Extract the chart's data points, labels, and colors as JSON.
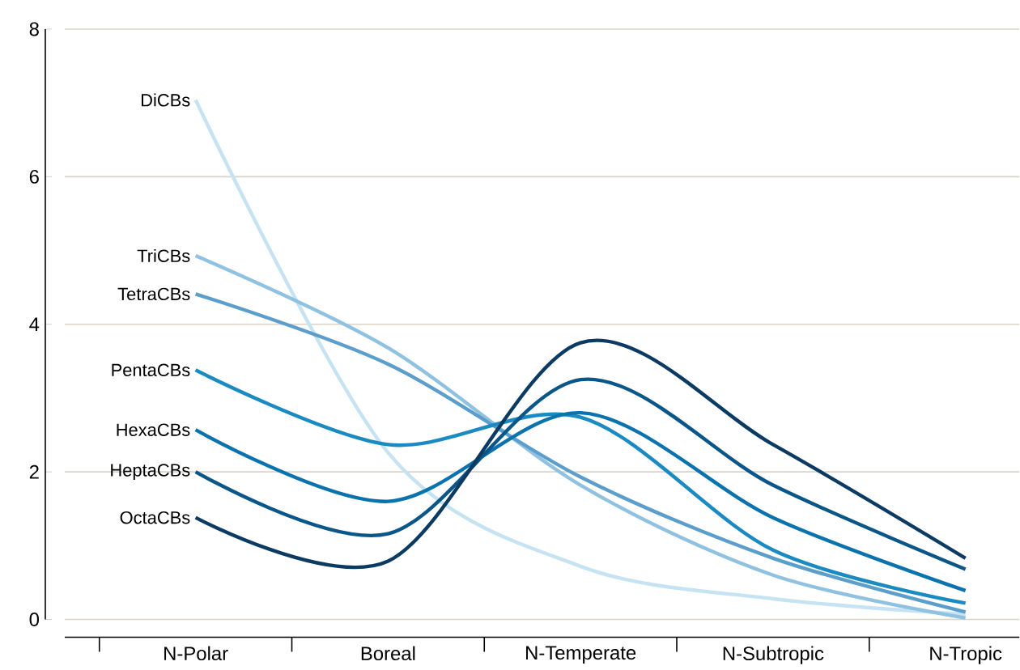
{
  "chart_data": {
    "type": "line",
    "categories": [
      "N-Polar",
      "Boreal",
      "N-Temperate",
      "N-Subtropic",
      "N-Tropic"
    ],
    "series": [
      {
        "name": "DiCBs",
        "color": "#c5e3f2",
        "values": [
          7.04,
          2.26,
          0.72,
          0.28,
          0.07
        ]
      },
      {
        "name": "TriCBs",
        "color": "#8fc1e0",
        "values": [
          4.93,
          3.68,
          1.82,
          0.6,
          0.02
        ]
      },
      {
        "name": "TetraCBs",
        "color": "#5b9dcb",
        "values": [
          4.41,
          3.46,
          1.93,
          0.83,
          0.1
        ]
      },
      {
        "name": "PentaCBs",
        "color": "#1a8ac2",
        "values": [
          3.38,
          2.37,
          2.74,
          0.94,
          0.22
        ]
      },
      {
        "name": "HexaCBs",
        "color": "#0a73ae",
        "values": [
          2.57,
          1.6,
          2.8,
          1.38,
          0.39
        ]
      },
      {
        "name": "HeptaCBs",
        "color": "#0a5688",
        "values": [
          2.0,
          1.16,
          3.25,
          1.82,
          0.68
        ]
      },
      {
        "name": "OctaCBs",
        "color": "#0b3a63",
        "values": [
          1.38,
          0.79,
          3.75,
          2.37,
          0.83
        ]
      }
    ],
    "ylim": [
      0,
      8
    ],
    "yticks": [
      0,
      2,
      4,
      6,
      8
    ],
    "grid": "y",
    "marker": "none",
    "line_style": "solid"
  }
}
